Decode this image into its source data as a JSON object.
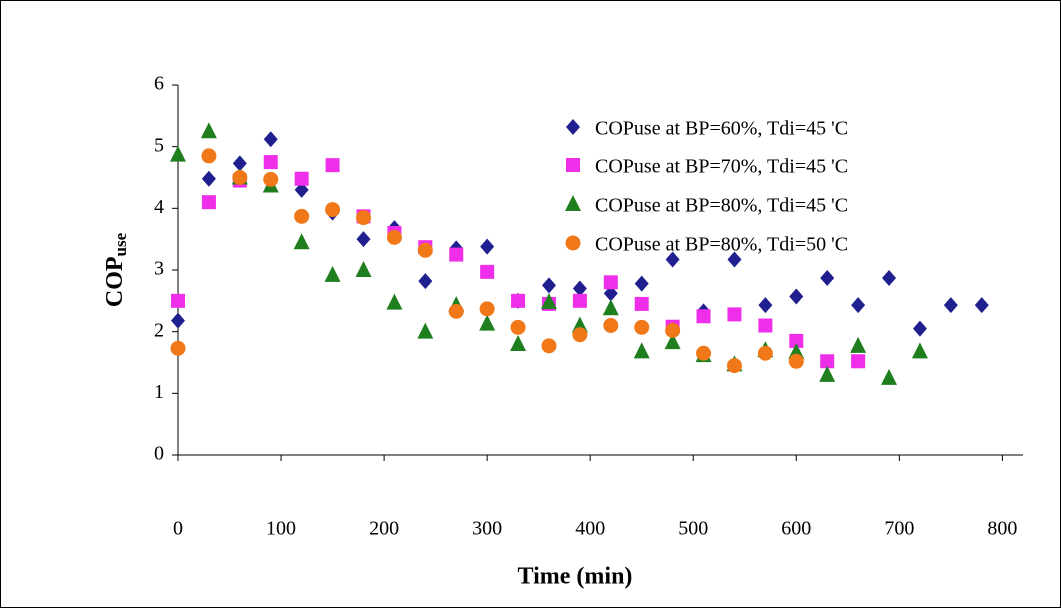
{
  "chart_data": {
    "type": "scatter",
    "x_label": "Time (min)",
    "y_label": "COP",
    "y_label_sub": "use",
    "xlim": [
      0,
      820
    ],
    "xticks": [
      0,
      100,
      200,
      300,
      400,
      500,
      600,
      700,
      800
    ],
    "ylim": [
      0,
      6
    ],
    "yticks": [
      0,
      1,
      2,
      3,
      4,
      5,
      6
    ],
    "legend": "upper right",
    "series": [
      {
        "name": "COPuse at BP=60%, Tdi=45 'C",
        "color": "#1f1f8f",
        "marker": "diamond",
        "x": [
          0,
          30,
          60,
          90,
          120,
          150,
          180,
          210,
          240,
          270,
          300,
          330,
          360,
          390,
          420,
          450,
          480,
          510,
          540,
          570,
          600,
          630,
          660,
          690,
          720,
          750,
          780
        ],
        "values": [
          2.18,
          4.48,
          4.73,
          5.12,
          4.3,
          3.93,
          3.5,
          3.68,
          2.82,
          3.35,
          3.38,
          2.5,
          2.75,
          2.7,
          2.62,
          2.78,
          3.17,
          2.33,
          3.17,
          2.43,
          2.57,
          2.87,
          2.43,
          2.87,
          2.05,
          2.43,
          2.43
        ]
      },
      {
        "name": "COPuse at BP=70%, Tdi=45 'C",
        "color": "#ee2ee8",
        "marker": "square",
        "x": [
          0,
          30,
          60,
          90,
          120,
          150,
          180,
          210,
          240,
          270,
          300,
          330,
          360,
          390,
          420,
          450,
          480,
          510,
          540,
          570,
          600,
          630,
          660
        ],
        "values": [
          2.5,
          4.1,
          4.45,
          4.75,
          4.48,
          4.7,
          3.87,
          3.6,
          3.37,
          3.25,
          2.97,
          2.5,
          2.45,
          2.5,
          2.8,
          2.45,
          2.08,
          2.25,
          2.28,
          2.1,
          1.85,
          1.52,
          1.52
        ]
      },
      {
        "name": "COPuse at BP=80%, Tdi=45 'C",
        "color": "#1f7f1f",
        "marker": "triangle",
        "x": [
          0,
          30,
          60,
          90,
          120,
          150,
          180,
          210,
          240,
          270,
          300,
          330,
          360,
          390,
          420,
          450,
          480,
          510,
          540,
          570,
          600,
          630,
          660,
          690,
          720
        ],
        "values": [
          4.87,
          5.25,
          4.5,
          4.37,
          3.45,
          2.92,
          3.0,
          2.47,
          2.0,
          2.43,
          2.13,
          1.8,
          2.48,
          2.1,
          2.38,
          1.68,
          1.83,
          1.62,
          1.47,
          1.7,
          1.67,
          1.3,
          1.77,
          1.25,
          1.68
        ]
      },
      {
        "name": "COPuse at BP=80%, Tdi=50 'C",
        "color": "#f07818",
        "marker": "circle",
        "x": [
          0,
          30,
          60,
          90,
          120,
          150,
          180,
          210,
          240,
          270,
          300,
          330,
          360,
          390,
          420,
          450,
          480,
          510,
          540,
          570,
          600
        ],
        "values": [
          1.73,
          4.85,
          4.5,
          4.47,
          3.87,
          3.98,
          3.85,
          3.53,
          3.32,
          2.33,
          2.37,
          2.07,
          1.77,
          1.95,
          2.1,
          2.07,
          2.02,
          1.65,
          1.45,
          1.65,
          1.52
        ]
      }
    ]
  }
}
